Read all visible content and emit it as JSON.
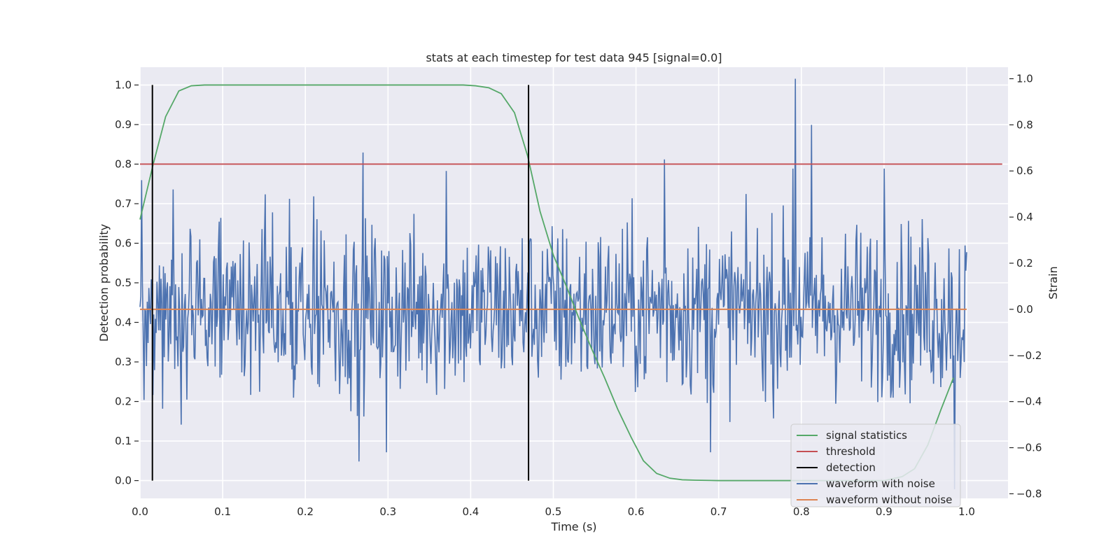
{
  "chart_data": {
    "type": "line",
    "title": "stats at each timestep for test data 945 [signal=0.0]",
    "xlabel": "Time (s)",
    "ylabel_left": "Detection probability",
    "ylabel_right": "Strain",
    "xlim": [
      0.0,
      1.05
    ],
    "ylim_left": [
      -0.045,
      1.045
    ],
    "ylim_right": [
      -0.82,
      1.05
    ],
    "x_ticks": [
      "0.0",
      "0.1",
      "0.2",
      "0.3",
      "0.4",
      "0.5",
      "0.6",
      "0.7",
      "0.8",
      "0.9",
      "1.0"
    ],
    "y_ticks_left": [
      "0.0",
      "0.1",
      "0.2",
      "0.3",
      "0.4",
      "0.5",
      "0.6",
      "0.7",
      "0.8",
      "0.9",
      "1.0"
    ],
    "y_ticks_right": [
      "−0.8",
      "−0.6",
      "−0.4",
      "−0.2",
      "0.0",
      "0.2",
      "0.4",
      "0.6",
      "0.8",
      "1.0"
    ],
    "grid": true,
    "legend_position": "lower-right",
    "colors": {
      "background": "#eaeaf2",
      "grid": "#ffffff",
      "signal_statistics": "#55a868",
      "threshold": "#c44e52",
      "detection": "#000000",
      "waveform_with_noise": "#4c72b0",
      "waveform_without_noise": "#dd8452"
    },
    "series": [
      {
        "name": "signal statistics",
        "axis": "left",
        "x": [
          0.0,
          0.016,
          0.031,
          0.047,
          0.062,
          0.078,
          0.094,
          0.109,
          0.125,
          0.2,
          0.3,
          0.375,
          0.391,
          0.406,
          0.422,
          0.437,
          0.453,
          0.469,
          0.484,
          0.5,
          0.516,
          0.531,
          0.547,
          0.562,
          0.578,
          0.594,
          0.609,
          0.625,
          0.641,
          0.656,
          0.672,
          0.7,
          0.8,
          0.9,
          0.922,
          0.937,
          0.953,
          0.969,
          0.984
        ],
        "y": [
          0.66,
          0.8,
          0.92,
          0.985,
          0.998,
          1.0,
          1.0,
          1.0,
          1.0,
          1.0,
          1.0,
          1.0,
          1.0,
          0.998,
          0.993,
          0.978,
          0.93,
          0.82,
          0.68,
          0.57,
          0.49,
          0.41,
          0.33,
          0.26,
          0.18,
          0.11,
          0.05,
          0.018,
          0.006,
          0.002,
          0.001,
          0.0,
          0.0,
          0.0,
          0.01,
          0.03,
          0.09,
          0.18,
          0.26
        ]
      },
      {
        "name": "threshold",
        "axis": "left",
        "x": [
          0.0,
          1.043
        ],
        "y": [
          0.8,
          0.8
        ]
      },
      {
        "name": "detection",
        "axis": "left",
        "segments": [
          {
            "x": 0.015,
            "y0": 0.0,
            "y1": 1.0
          },
          {
            "x": 0.47,
            "y0": 0.0,
            "y1": 1.0
          }
        ]
      },
      {
        "name": "waveform with noise",
        "axis": "right",
        "x_range": [
          0.0,
          1.0
        ],
        "points": 1024,
        "peaks": [
          {
            "x": 0.002,
            "y": 0.56
          },
          {
            "x": 0.04,
            "y": 0.52
          },
          {
            "x": 0.27,
            "y": 0.68
          },
          {
            "x": 0.37,
            "y": 0.6
          },
          {
            "x": 0.634,
            "y": 0.65
          },
          {
            "x": 0.79,
            "y": 0.61
          },
          {
            "x": 0.793,
            "y": 1.0
          },
          {
            "x": 0.812,
            "y": 0.8
          },
          {
            "x": 0.9,
            "y": 0.61
          },
          {
            "x": 0.265,
            "y": -0.66
          },
          {
            "x": 0.298,
            "y": -0.62
          },
          {
            "x": 0.69,
            "y": -0.62
          },
          {
            "x": 0.985,
            "y": -0.78
          },
          {
            "x": 0.05,
            "y": -0.5
          }
        ],
        "y_range": [
          -0.78,
          1.0
        ]
      },
      {
        "name": "waveform without noise",
        "axis": "right",
        "x": [
          0.0,
          1.0
        ],
        "y": [
          0.0,
          0.0
        ]
      }
    ],
    "legend": [
      "signal statistics",
      "threshold",
      "detection",
      "waveform with noise",
      "waveform without noise"
    ]
  }
}
